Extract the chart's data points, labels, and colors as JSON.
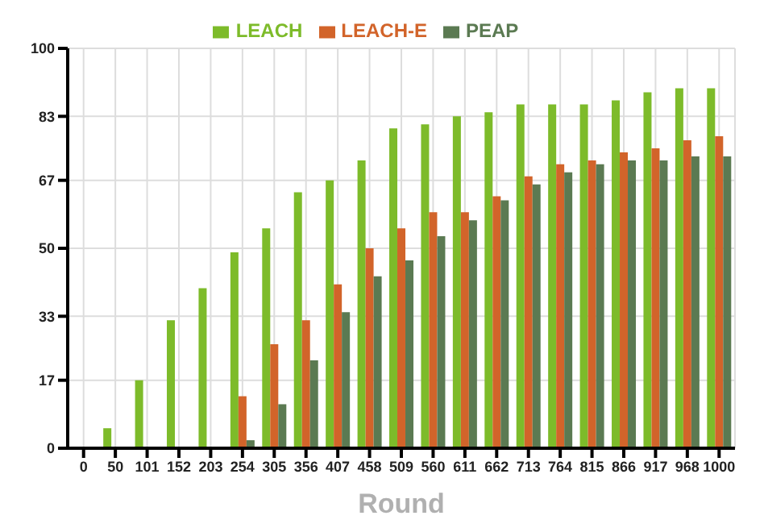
{
  "chart_data": {
    "type": "bar",
    "xlabel": "Round",
    "categories": [
      "0",
      "50",
      "101",
      "152",
      "203",
      "254",
      "305",
      "356",
      "407",
      "458",
      "509",
      "560",
      "611",
      "662",
      "713",
      "764",
      "815",
      "866",
      "917",
      "968",
      "1000"
    ],
    "series": [
      {
        "name": "LEACH",
        "color": "#7dbb2a",
        "values": [
          0,
          5,
          17,
          32,
          40,
          49,
          55,
          64,
          67,
          72,
          80,
          81,
          83,
          84,
          86,
          86,
          86,
          87,
          89,
          90,
          90
        ]
      },
      {
        "name": "LEACH-E",
        "color": "#d2642a",
        "values": [
          0,
          0,
          0,
          0,
          0,
          13,
          26,
          32,
          41,
          50,
          55,
          59,
          59,
          63,
          68,
          71,
          72,
          74,
          75,
          77,
          78
        ]
      },
      {
        "name": "PEAP",
        "color": "#5b7a52",
        "values": [
          0,
          0,
          0,
          0,
          0,
          2,
          11,
          22,
          34,
          43,
          47,
          53,
          57,
          62,
          66,
          69,
          71,
          72,
          72,
          73,
          73
        ]
      }
    ],
    "ylim": [
      0,
      100
    ],
    "yticks": [
      0,
      17,
      33,
      50,
      67,
      83,
      100
    ],
    "grid": true,
    "legend": "top"
  }
}
